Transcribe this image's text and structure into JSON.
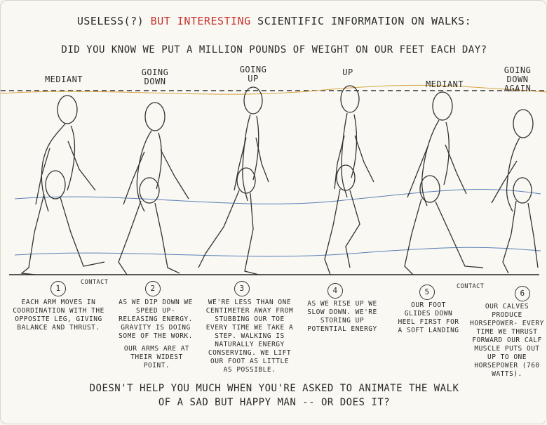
{
  "header": {
    "title_prefix": "USELESS(?)",
    "title_highlight": "BUT INTERESTING",
    "title_suffix": "SCIENTIFIC INFORMATION ON WALKS:",
    "question": "DID YOU KNOW WE PUT A MILLION POUNDS OF WEIGHT ON OUR FEET EACH DAY?"
  },
  "phases": [
    {
      "label": "MEDIANT"
    },
    {
      "label": "GOING DOWN"
    },
    {
      "label": "GOING UP"
    },
    {
      "label": "UP"
    },
    {
      "label": "MEDIANT"
    },
    {
      "label": "GOING DOWN AGAIN"
    }
  ],
  "contacts": [
    "CONTACT",
    "CONTACT"
  ],
  "notes": [
    {
      "num": "1",
      "text": "EACH ARM MOVES IN COORDINATION WITH THE OPPOSITE LEG, GIVING BALANCE AND THRUST."
    },
    {
      "num": "2",
      "text": "AS WE DIP DOWN WE SPEED UP- RELEASING ENERGY. GRAVITY IS DOING SOME OF THE WORK.",
      "text2": "OUR ARMS ARE AT THEIR WIDEST POINT."
    },
    {
      "num": "3",
      "text": "WE'RE LESS THAN ONE CENTIMETER AWAY FROM STUBBING OUR TOE EVERY TIME WE TAKE A STEP. WALKING IS NATURALLY ENERGY CONSERVING. WE LIFT OUR FOOT AS LITTLE AS POSSIBLE."
    },
    {
      "num": "4",
      "text": "AS WE RISE UP WE SLOW DOWN. WE'RE STORING UP POTENTIAL ENERGY"
    },
    {
      "num": "5",
      "text": "OUR FOOT GLIDES DOWN HEEL FIRST FOR A SOFT LANDING"
    },
    {
      "num": "6",
      "text": "OUR CALVES PRODUCE HORSEPOWER- EVERY TIME WE THRUST FORWARD OUR CALF MUSCLE PUTS OUT UP TO ONE HORSEPOWER (760 WATTS)."
    }
  ],
  "footer": {
    "line1": "DOESN'T HELP YOU MUCH WHEN YOU'RE ASKED TO ANIMATE THE WALK",
    "line2": "OF A SAD BUT HAPPY MAN -- OR DOES IT?"
  },
  "colors": {
    "title_highlight": "#c8312c",
    "ink": "#2a2a2a",
    "guide_blue": "#5b7fb6",
    "guide_orange": "#d9a441"
  }
}
